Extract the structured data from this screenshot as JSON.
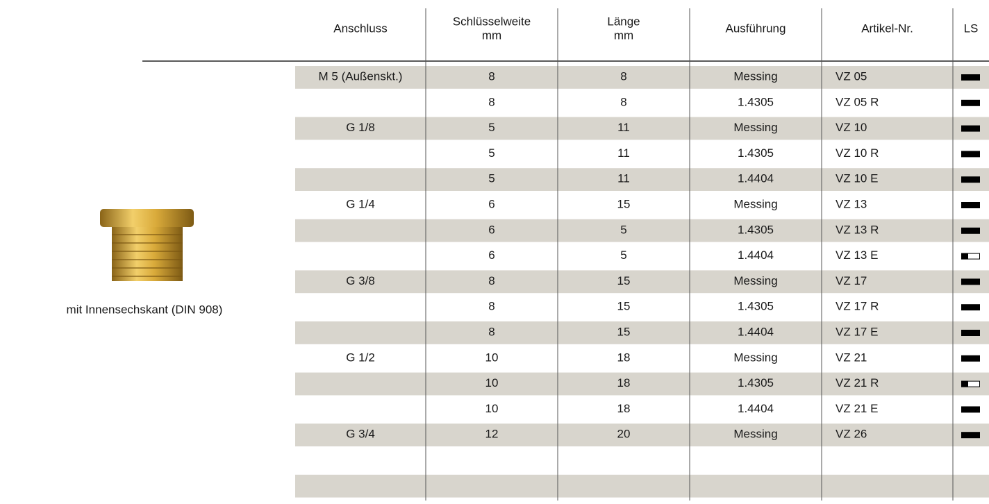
{
  "header": {
    "columns": [
      [
        "Anschluss"
      ],
      [
        "Schlüsselweite",
        "mm"
      ],
      [
        "Länge",
        "mm"
      ],
      [
        "Ausführung"
      ],
      [
        "Artikel-Nr."
      ],
      [
        "LS"
      ]
    ]
  },
  "product": {
    "caption": "mit Innensechskant (DIN 908)"
  },
  "table": {
    "rows": [
      [
        "M 5 (Außenskt.)",
        8,
        8,
        "Messing",
        "VZ 05"
      ],
      [
        null,
        8,
        8,
        "1.4305",
        "VZ 05 R"
      ],
      [
        "G 1/8",
        5,
        11,
        "Messing",
        "VZ 10"
      ],
      [
        null,
        5,
        11,
        "1.4305",
        "VZ 10 R"
      ],
      [
        null,
        5,
        11,
        "1.4404",
        "VZ 10 E"
      ],
      [
        "G 1/4",
        6,
        15,
        "Messing",
        "VZ 13"
      ],
      [
        null,
        6,
        5,
        "1.4305",
        "VZ 13 R"
      ],
      [
        null,
        6,
        5,
        "1.4404",
        "VZ 13 E"
      ],
      [
        "G 3/8",
        8,
        15,
        "Messing",
        "VZ 17"
      ],
      [
        null,
        8,
        15,
        "1.4305",
        "VZ 17 R"
      ],
      [
        null,
        8,
        15,
        "1.4404",
        "VZ 17 E"
      ],
      [
        "G 1/2",
        10,
        18,
        "Messing",
        "VZ 21"
      ],
      [
        null,
        10,
        18,
        "1.4305",
        "VZ 21 R"
      ],
      [
        null,
        10,
        18,
        "1.4404",
        "VZ 21 E"
      ],
      [
        "G 3/4",
        12,
        20,
        "Messing",
        "VZ 26"
      ]
    ]
  }
}
